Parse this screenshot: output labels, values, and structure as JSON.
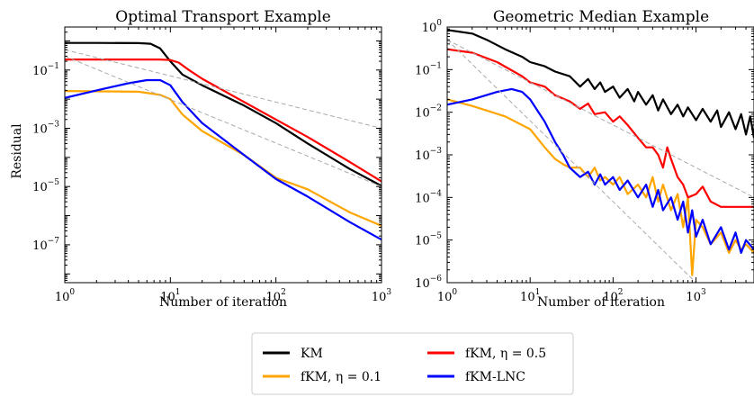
{
  "chart_data": [
    {
      "type": "line",
      "title": "Optimal Transport Example",
      "xlabel": "Number of iteration",
      "ylabel": "Residual",
      "xscale": "log",
      "yscale": "log",
      "xlim": [
        1,
        1000
      ],
      "ylim": [
        5e-09,
        3
      ],
      "grid": false,
      "x_ticks": [
        {
          "base": "10",
          "exp": "0",
          "value": 1
        },
        {
          "base": "10",
          "exp": "1",
          "value": 10
        },
        {
          "base": "10",
          "exp": "2",
          "value": 100
        },
        {
          "base": "10",
          "exp": "3",
          "value": 1000
        }
      ],
      "y_ticks": [
        {
          "base": "10",
          "exp": "−1",
          "value": 0.1
        },
        {
          "base": "10",
          "exp": "−3",
          "value": 0.001
        },
        {
          "base": "10",
          "exp": "−5",
          "value": 1e-05
        },
        {
          "base": "10",
          "exp": "−7",
          "value": 1e-07
        }
      ],
      "series": [
        {
          "name": "KM",
          "color": "#000000",
          "points": [
            [
              1,
              0.85
            ],
            [
              2,
              0.85
            ],
            [
              5,
              0.84
            ],
            [
              6.5,
              0.8
            ],
            [
              8,
              0.55
            ],
            [
              10,
              0.2
            ],
            [
              13,
              0.07
            ],
            [
              20,
              0.03
            ],
            [
              50,
              0.006
            ],
            [
              100,
              0.0015
            ],
            [
              200,
              0.0003
            ],
            [
              500,
              4e-05
            ],
            [
              1000,
              1.05e-05
            ]
          ]
        },
        {
          "name": "fKM, η = 0.1",
          "color": "#FFA500",
          "points": [
            [
              1,
              0.019
            ],
            [
              5,
              0.018
            ],
            [
              8,
              0.014
            ],
            [
              10,
              0.01
            ],
            [
              13,
              0.003
            ],
            [
              20,
              0.0008
            ],
            [
              50,
              0.00012
            ],
            [
              100,
              2e-05
            ],
            [
              200,
              8e-06
            ],
            [
              500,
              1.3e-06
            ],
            [
              1000,
              4.5e-07
            ]
          ]
        },
        {
          "name": "fKM, η = 0.5",
          "color": "#FF0000",
          "points": [
            [
              1,
              0.23
            ],
            [
              8,
              0.23
            ],
            [
              10,
              0.22
            ],
            [
              12,
              0.18
            ],
            [
              15,
              0.1
            ],
            [
              20,
              0.05
            ],
            [
              50,
              0.008
            ],
            [
              100,
              0.002
            ],
            [
              200,
              0.0005
            ],
            [
              500,
              7e-05
            ],
            [
              1000,
              1.5e-05
            ]
          ]
        },
        {
          "name": "fKM-LNC",
          "color": "#0000FF",
          "points": [
            [
              1,
              0.011
            ],
            [
              2,
              0.02
            ],
            [
              4,
              0.035
            ],
            [
              6,
              0.045
            ],
            [
              8,
              0.045
            ],
            [
              10,
              0.03
            ],
            [
              13,
              0.008
            ],
            [
              20,
              0.0015
            ],
            [
              50,
              0.00012
            ],
            [
              100,
              1.8e-05
            ],
            [
              200,
              4.5e-06
            ],
            [
              500,
              6e-07
            ],
            [
              1000,
              1.5e-07
            ]
          ]
        }
      ],
      "reference_lines": [
        {
          "color": "#AAAAAA",
          "style": "dashed",
          "points": [
            [
              1,
              0.5
            ],
            [
              1000,
              0.001
            ]
          ]
        },
        {
          "color": "#AAAAAA",
          "style": "dashed",
          "points": [
            [
              1,
              0.3
            ],
            [
              1000,
              1e-05
            ]
          ]
        }
      ]
    },
    {
      "type": "line",
      "title": "Geometric Median Example",
      "xlabel": "Number of iteration",
      "ylabel": "",
      "xscale": "log",
      "yscale": "log",
      "xlim": [
        1,
        5000
      ],
      "ylim": [
        1e-06,
        1
      ],
      "grid": false,
      "x_ticks": [
        {
          "base": "10",
          "exp": "0",
          "value": 1
        },
        {
          "base": "10",
          "exp": "1",
          "value": 10
        },
        {
          "base": "10",
          "exp": "2",
          "value": 100
        },
        {
          "base": "10",
          "exp": "3",
          "value": 1000
        }
      ],
      "y_ticks": [
        {
          "base": "10",
          "exp": "0",
          "value": 1
        },
        {
          "base": "10",
          "exp": "−1",
          "value": 0.1
        },
        {
          "base": "10",
          "exp": "−2",
          "value": 0.01
        },
        {
          "base": "10",
          "exp": "−3",
          "value": 0.001
        },
        {
          "base": "10",
          "exp": "−4",
          "value": 0.0001
        },
        {
          "base": "10",
          "exp": "−5",
          "value": 1e-05
        },
        {
          "base": "10",
          "exp": "−6",
          "value": 1e-06
        }
      ],
      "series": [
        {
          "name": "KM",
          "color": "#000000",
          "points": [
            [
              1,
              0.85
            ],
            [
              2,
              0.7
            ],
            [
              3,
              0.5
            ],
            [
              5,
              0.3
            ],
            [
              8,
              0.2
            ],
            [
              10,
              0.15
            ],
            [
              15,
              0.12
            ],
            [
              20,
              0.09
            ],
            [
              30,
              0.07
            ],
            [
              40,
              0.04
            ],
            [
              50,
              0.06
            ],
            [
              60,
              0.035
            ],
            [
              70,
              0.05
            ],
            [
              80,
              0.03
            ],
            [
              100,
              0.04
            ],
            [
              120,
              0.022
            ],
            [
              150,
              0.035
            ],
            [
              180,
              0.018
            ],
            [
              200,
              0.03
            ],
            [
              250,
              0.015
            ],
            [
              300,
              0.025
            ],
            [
              350,
              0.011
            ],
            [
              400,
              0.02
            ],
            [
              500,
              0.009
            ],
            [
              600,
              0.015
            ],
            [
              700,
              0.008
            ],
            [
              800,
              0.013
            ],
            [
              1000,
              0.0065
            ],
            [
              1200,
              0.012
            ],
            [
              1500,
              0.006
            ],
            [
              1800,
              0.011
            ],
            [
              2000,
              0.0045
            ],
            [
              2500,
              0.01
            ],
            [
              3000,
              0.004
            ],
            [
              3500,
              0.009
            ],
            [
              4000,
              0.003
            ],
            [
              4500,
              0.008
            ],
            [
              5000,
              0.0025
            ]
          ]
        },
        {
          "name": "fKM, η = 0.1",
          "color": "#FFA500",
          "points": [
            [
              1,
              0.02
            ],
            [
              2,
              0.014
            ],
            [
              5,
              0.008
            ],
            [
              10,
              0.004
            ],
            [
              15,
              0.0015
            ],
            [
              20,
              0.0008
            ],
            [
              25,
              0.0006
            ],
            [
              30,
              0.0005
            ],
            [
              40,
              0.0005
            ],
            [
              50,
              0.0003
            ],
            [
              60,
              0.0005
            ],
            [
              70,
              0.00025
            ],
            [
              80,
              0.0003
            ],
            [
              100,
              0.0002
            ],
            [
              120,
              0.0003
            ],
            [
              150,
              0.00012
            ],
            [
              200,
              0.0002
            ],
            [
              250,
              0.0001
            ],
            [
              300,
              0.0003
            ],
            [
              350,
              8e-05
            ],
            [
              400,
              0.0002
            ],
            [
              500,
              5e-05
            ],
            [
              600,
              0.00012
            ],
            [
              700,
              2e-05
            ],
            [
              800,
              0.0001
            ],
            [
              900,
              1.5e-06
            ],
            [
              1000,
              3e-05
            ],
            [
              1200,
              2e-05
            ],
            [
              1500,
              8e-06
            ],
            [
              2000,
              1.5e-05
            ],
            [
              2500,
              5e-06
            ],
            [
              3000,
              1e-05
            ],
            [
              3500,
              6e-06
            ],
            [
              4000,
              8e-06
            ],
            [
              5000,
              5e-06
            ]
          ]
        },
        {
          "name": "fKM, η = 0.5",
          "color": "#FF0000",
          "points": [
            [
              1,
              0.3
            ],
            [
              2,
              0.25
            ],
            [
              4,
              0.15
            ],
            [
              8,
              0.07
            ],
            [
              10,
              0.05
            ],
            [
              15,
              0.04
            ],
            [
              20,
              0.025
            ],
            [
              30,
              0.018
            ],
            [
              40,
              0.012
            ],
            [
              50,
              0.016
            ],
            [
              60,
              0.009
            ],
            [
              80,
              0.01
            ],
            [
              100,
              0.006
            ],
            [
              120,
              0.008
            ],
            [
              150,
              0.005
            ],
            [
              200,
              0.0025
            ],
            [
              250,
              0.0015
            ],
            [
              300,
              0.0015
            ],
            [
              350,
              0.001
            ],
            [
              400,
              0.0005
            ],
            [
              450,
              0.0015
            ],
            [
              500,
              0.0008
            ],
            [
              600,
              0.0003
            ],
            [
              700,
              0.0002
            ],
            [
              800,
              0.0001
            ],
            [
              1000,
              0.00012
            ],
            [
              1200,
              0.00018
            ],
            [
              1500,
              8e-05
            ],
            [
              2000,
              6e-05
            ],
            [
              3000,
              6e-05
            ],
            [
              5000,
              6e-05
            ]
          ]
        },
        {
          "name": "fKM-LNC",
          "color": "#0000FF",
          "points": [
            [
              1,
              0.015
            ],
            [
              2,
              0.02
            ],
            [
              4,
              0.03
            ],
            [
              6,
              0.035
            ],
            [
              8,
              0.03
            ],
            [
              10,
              0.02
            ],
            [
              15,
              0.006
            ],
            [
              20,
              0.002
            ],
            [
              25,
              0.001
            ],
            [
              30,
              0.0005
            ],
            [
              40,
              0.0003
            ],
            [
              50,
              0.0004
            ],
            [
              60,
              0.0002
            ],
            [
              70,
              0.00035
            ],
            [
              80,
              0.0002
            ],
            [
              100,
              0.0003
            ],
            [
              120,
              0.00015
            ],
            [
              150,
              0.00025
            ],
            [
              200,
              0.0001
            ],
            [
              250,
              0.0002
            ],
            [
              300,
              6e-05
            ],
            [
              350,
              0.00015
            ],
            [
              400,
              5e-05
            ],
            [
              500,
              0.0001
            ],
            [
              600,
              3e-05
            ],
            [
              700,
              8e-05
            ],
            [
              800,
              1.5e-05
            ],
            [
              900,
              5e-05
            ],
            [
              1000,
              1.2e-05
            ],
            [
              1200,
              3e-05
            ],
            [
              1500,
              8e-06
            ],
            [
              2000,
              2e-05
            ],
            [
              2500,
              6e-06
            ],
            [
              3000,
              1.5e-05
            ],
            [
              3500,
              5e-06
            ],
            [
              4000,
              1e-05
            ],
            [
              5000,
              6e-06
            ]
          ]
        }
      ],
      "reference_lines": [
        {
          "color": "#AAAAAA",
          "style": "dashed",
          "points": [
            [
              1,
              0.5
            ],
            [
              5000,
              0.0001
            ]
          ]
        },
        {
          "color": "#AAAAAA",
          "style": "dashed",
          "points": [
            [
              1,
              0.5
            ],
            [
              1000,
              1e-06
            ]
          ]
        }
      ]
    }
  ],
  "legend": {
    "placement": "bottom-center",
    "entries": [
      {
        "label": "KM",
        "color": "#000000"
      },
      {
        "label": "fKM, η = 0.5",
        "color": "#FF0000"
      },
      {
        "label": "fKM, η = 0.1",
        "color": "#FFA500"
      },
      {
        "label": "fKM-LNC",
        "color": "#0000FF"
      }
    ]
  }
}
